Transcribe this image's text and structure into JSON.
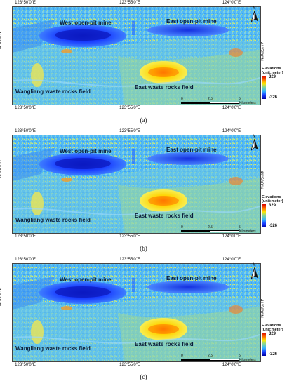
{
  "map": {
    "top_ticks": [
      "123°50'0\"E",
      "123°55'0\"E",
      "124°0'0\"E"
    ],
    "bottom_ticks": [
      "123°50'0\"E",
      "123°55'0\"E",
      "124°0'0\"E"
    ],
    "lat_tick": "41°50'0\"N",
    "north_label": "N",
    "labels": {
      "west_mine": "West open-pit mine",
      "east_mine": "East open-pit mine",
      "east_field": "East waste rocks field",
      "wangliang_field": "Wangliang waste rocks field"
    },
    "legend": {
      "title_line1": "Elevations",
      "title_line2": "(unit:meter)",
      "max": "329",
      "min": "-326",
      "colors": [
        "#d60000",
        "#ff6a00",
        "#ffe800",
        "#7dd3a0",
        "#33b4ff",
        "#1a3dff",
        "#0000a0"
      ]
    },
    "scale": {
      "n0": "0",
      "n1": "2.5",
      "n2": "5",
      "unit": "Kilometers"
    }
  },
  "panels": [
    {
      "caption": "(a)"
    },
    {
      "caption": "(b)"
    },
    {
      "caption": "(c)"
    }
  ]
}
